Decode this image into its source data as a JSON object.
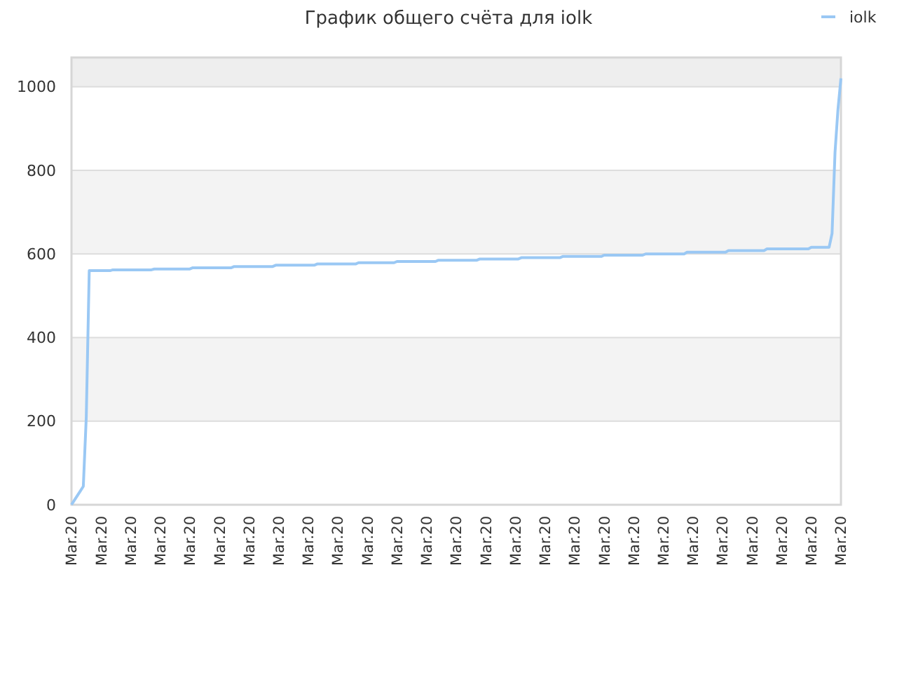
{
  "chart_data": {
    "type": "line",
    "title": "График общего счёта для iolk",
    "categories": [
      "Mar.20",
      null,
      null,
      null,
      null,
      null,
      null,
      null,
      null,
      null,
      "Mar.20",
      null,
      null,
      null,
      null,
      null,
      null,
      null,
      null,
      null,
      "Mar.20",
      null,
      null,
      null,
      null,
      null,
      null,
      null,
      null,
      null,
      "Mar.20",
      null,
      null,
      null,
      null,
      null,
      null,
      null,
      null,
      null,
      "Mar.20",
      null,
      null,
      null,
      null,
      null,
      null,
      null,
      null,
      null,
      "Mar.20",
      null,
      null,
      null,
      null,
      null,
      null,
      null,
      null,
      null,
      "Mar.20",
      null,
      null,
      null,
      null,
      null,
      null,
      null,
      null,
      null,
      "Mar.20",
      null,
      null,
      null,
      null,
      null,
      null,
      null,
      null,
      null,
      "Mar.20",
      null,
      null,
      null,
      null,
      null,
      null,
      null,
      null,
      null,
      "Mar.20",
      null,
      null,
      null,
      null,
      null,
      null,
      null,
      null,
      null,
      "Mar.20",
      null,
      null,
      null,
      null,
      null,
      null,
      null,
      null,
      null,
      "Mar.20",
      null,
      null,
      null,
      null,
      null,
      null,
      null,
      null,
      null,
      "Mar.20",
      null,
      null,
      null,
      null,
      null,
      null,
      null,
      null,
      null,
      "Mar.20",
      null,
      null,
      null,
      null,
      null,
      null,
      null,
      null,
      null,
      "Mar.20",
      null,
      null,
      null,
      null,
      null,
      null,
      null,
      null,
      null,
      "Mar.20",
      null,
      null,
      null,
      null,
      null,
      null,
      null,
      null,
      null,
      "Mar.20",
      null,
      null,
      null,
      null,
      null,
      null,
      null,
      null,
      null,
      "Mar.20",
      null,
      null,
      null,
      null,
      null,
      null,
      null,
      null,
      null,
      "Mar.20",
      null,
      null,
      null,
      null,
      null,
      null,
      null,
      null,
      null,
      "Mar.20",
      null,
      null,
      null,
      null,
      null,
      null,
      null,
      null,
      null,
      "Mar.20",
      null,
      null,
      null,
      null,
      null,
      null,
      null,
      null,
      null,
      "Mar.20",
      null,
      null,
      null,
      null,
      null,
      null,
      null,
      null,
      null,
      "Mar.20",
      null,
      null,
      null,
      null,
      null,
      null,
      null,
      null,
      null,
      "Mar.20",
      null,
      null,
      null,
      null,
      null,
      null,
      null,
      null,
      null,
      "Mar.20",
      null,
      null,
      null,
      null,
      null,
      null,
      null,
      null,
      null,
      "Mar.20",
      null,
      null,
      null,
      null,
      null,
      null,
      null,
      null,
      null,
      "Mar.20"
    ],
    "series": [
      {
        "name": "iolk",
        "color": "#9ac8f4",
        "values": [
          0,
          11,
          22,
          33,
          44,
          210,
          560,
          560,
          560,
          560,
          560,
          560,
          560,
          560,
          562,
          562,
          562,
          562,
          562,
          562,
          562,
          562,
          562,
          562,
          562,
          562,
          562,
          562,
          564,
          564,
          564,
          564,
          564,
          564,
          564,
          564,
          564,
          564,
          564,
          564,
          564,
          567,
          567,
          567,
          567,
          567,
          567,
          567,
          567,
          567,
          567,
          567,
          567,
          567,
          567,
          570,
          570,
          570,
          570,
          570,
          570,
          570,
          570,
          570,
          570,
          570,
          570,
          570,
          570,
          573,
          573,
          573,
          573,
          573,
          573,
          573,
          573,
          573,
          573,
          573,
          573,
          573,
          573,
          576,
          576,
          576,
          576,
          576,
          576,
          576,
          576,
          576,
          576,
          576,
          576,
          576,
          576,
          579,
          579,
          579,
          579,
          579,
          579,
          579,
          579,
          579,
          579,
          579,
          579,
          579,
          582,
          582,
          582,
          582,
          582,
          582,
          582,
          582,
          582,
          582,
          582,
          582,
          582,
          582,
          585,
          585,
          585,
          585,
          585,
          585,
          585,
          585,
          585,
          585,
          585,
          585,
          585,
          585,
          588,
          588,
          588,
          588,
          588,
          588,
          588,
          588,
          588,
          588,
          588,
          588,
          588,
          588,
          591,
          591,
          591,
          591,
          591,
          591,
          591,
          591,
          591,
          591,
          591,
          591,
          591,
          591,
          594,
          594,
          594,
          594,
          594,
          594,
          594,
          594,
          594,
          594,
          594,
          594,
          594,
          594,
          597,
          597,
          597,
          597,
          597,
          597,
          597,
          597,
          597,
          597,
          597,
          597,
          597,
          597,
          600,
          600,
          600,
          600,
          600,
          600,
          600,
          600,
          600,
          600,
          600,
          600,
          600,
          600,
          604,
          604,
          604,
          604,
          604,
          604,
          604,
          604,
          604,
          604,
          604,
          604,
          604,
          604,
          608,
          608,
          608,
          608,
          608,
          608,
          608,
          608,
          608,
          608,
          608,
          608,
          608,
          612,
          612,
          612,
          612,
          612,
          612,
          612,
          612,
          612,
          612,
          612,
          612,
          612,
          612,
          612,
          616,
          616,
          616,
          616,
          616,
          616,
          616,
          649,
          843,
          946,
          1020
        ]
      }
    ],
    "ylim": [
      0,
      1070
    ],
    "yticks": [
      0,
      200,
      400,
      600,
      800,
      1000
    ],
    "bands": [
      {
        "axis": "y",
        "from": 200,
        "to": 400,
        "color": "#f3f3f3"
      },
      {
        "axis": "y",
        "from": 600,
        "to": 800,
        "color": "#f3f3f3"
      },
      {
        "axis": "y",
        "from": 1000,
        "to": 1070,
        "color": "#eeeeee"
      }
    ],
    "grid": "y",
    "legend": "top right",
    "marker": "none",
    "line_style": "solid"
  }
}
